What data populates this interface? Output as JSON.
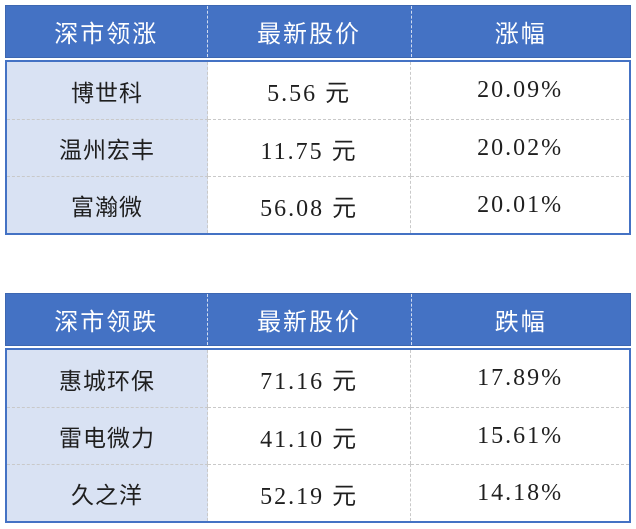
{
  "colors": {
    "header_bg": "#4472C4",
    "header_text": "#FFFFFF",
    "first_col_bg": "#D9E2F3",
    "table_border": "#4472C4",
    "row_divider": "#C9C9C9",
    "cell_text": "#1F1F1F"
  },
  "tables": [
    {
      "id": "shenzhen-gainers",
      "headers": [
        "深市领涨",
        "最新股价",
        "涨幅"
      ],
      "rows": [
        {
          "stock": "博世科",
          "price": "5.56 元",
          "change": "20.09%"
        },
        {
          "stock": "温州宏丰",
          "price": "11.75 元",
          "change": "20.02%"
        },
        {
          "stock": "富瀚微",
          "price": "56.08 元",
          "change": "20.01%"
        }
      ]
    },
    {
      "id": "shenzhen-losers",
      "headers": [
        "深市领跌",
        "最新股价",
        "跌幅"
      ],
      "rows": [
        {
          "stock": "惠城环保",
          "price": "71.16 元",
          "change": "17.89%"
        },
        {
          "stock": "雷电微力",
          "price": "41.10 元",
          "change": "15.61%"
        },
        {
          "stock": "久之洋",
          "price": "52.19 元",
          "change": "14.18%"
        }
      ]
    }
  ],
  "chart_data": [
    {
      "type": "table",
      "title": "深市领涨",
      "columns": [
        "深市领涨",
        "最新股价",
        "涨幅"
      ],
      "rows": [
        [
          "博世科",
          "5.56 元",
          "20.09%"
        ],
        [
          "温州宏丰",
          "11.75 元",
          "20.02%"
        ],
        [
          "富瀚微",
          "56.08 元",
          "20.01%"
        ]
      ],
      "numeric": {
        "prices_yuan": [
          5.56,
          11.75,
          56.08
        ],
        "change_pct": [
          20.09,
          20.02,
          20.01
        ]
      }
    },
    {
      "type": "table",
      "title": "深市领跌",
      "columns": [
        "深市领跌",
        "最新股价",
        "跌幅"
      ],
      "rows": [
        [
          "惠城环保",
          "71.16 元",
          "17.89%"
        ],
        [
          "雷电微力",
          "41.10 元",
          "15.61%"
        ],
        [
          "久之洋",
          "52.19 元",
          "14.18%"
        ]
      ],
      "numeric": {
        "prices_yuan": [
          71.16,
          41.1,
          52.19
        ],
        "change_pct": [
          17.89,
          15.61,
          14.18
        ]
      }
    }
  ]
}
